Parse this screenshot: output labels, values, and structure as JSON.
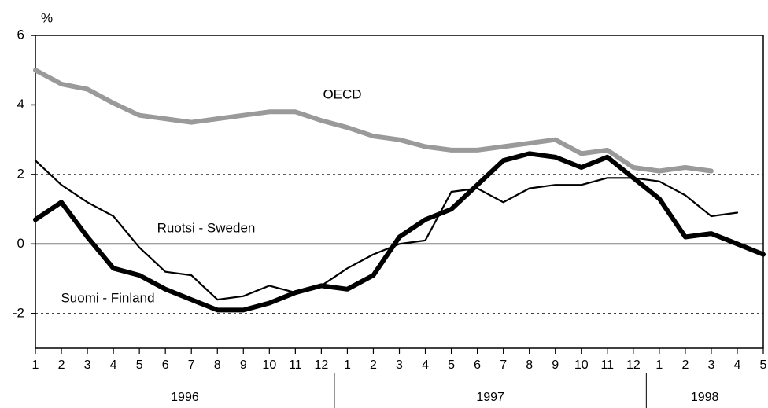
{
  "chart_data": {
    "type": "line",
    "y_unit": "%",
    "categories": [
      "1",
      "2",
      "3",
      "4",
      "5",
      "6",
      "7",
      "8",
      "9",
      "10",
      "11",
      "12",
      "1",
      "2",
      "3",
      "4",
      "5",
      "6",
      "7",
      "8",
      "9",
      "10",
      "11",
      "12",
      "1",
      "2",
      "3",
      "4",
      "5"
    ],
    "years": [
      "1996",
      "1997",
      "1998"
    ],
    "ylim": [
      -3,
      6
    ],
    "yticks": [
      -2,
      0,
      2,
      4,
      6
    ],
    "grid": true,
    "series": [
      {
        "name": "OECD",
        "color": "#9a9a9a",
        "line_width": 6,
        "values": [
          5.0,
          4.6,
          4.45,
          4.05,
          3.7,
          3.6,
          3.5,
          3.6,
          3.7,
          3.8,
          3.8,
          3.55,
          3.35,
          3.1,
          3.0,
          2.8,
          2.7,
          2.7,
          2.8,
          2.9,
          3.0,
          2.6,
          2.7,
          2.2,
          2.1,
          2.2,
          2.1,
          null,
          null
        ]
      },
      {
        "name": "Ruotsi - Sweden",
        "color": "#000000",
        "line_width": 2.2,
        "values": [
          2.4,
          1.7,
          1.2,
          0.8,
          -0.1,
          -0.8,
          -0.9,
          -1.6,
          -1.5,
          -1.2,
          -1.4,
          -1.2,
          -0.7,
          -0.3,
          0.0,
          0.1,
          1.5,
          1.6,
          1.2,
          1.6,
          1.7,
          1.7,
          1.9,
          1.9,
          1.8,
          1.4,
          0.8,
          0.9,
          null
        ]
      },
      {
        "name": "Suomi - Finland",
        "color": "#000000",
        "line_width": 6,
        "values": [
          0.7,
          1.2,
          0.2,
          -0.7,
          -0.9,
          -1.3,
          -1.6,
          -1.9,
          -1.9,
          -1.7,
          -1.4,
          -1.2,
          -1.3,
          -0.9,
          0.2,
          0.7,
          1.0,
          1.7,
          2.4,
          2.6,
          2.5,
          2.2,
          2.5,
          1.9,
          1.3,
          0.2,
          0.3,
          0.0,
          -0.3
        ]
      }
    ]
  }
}
